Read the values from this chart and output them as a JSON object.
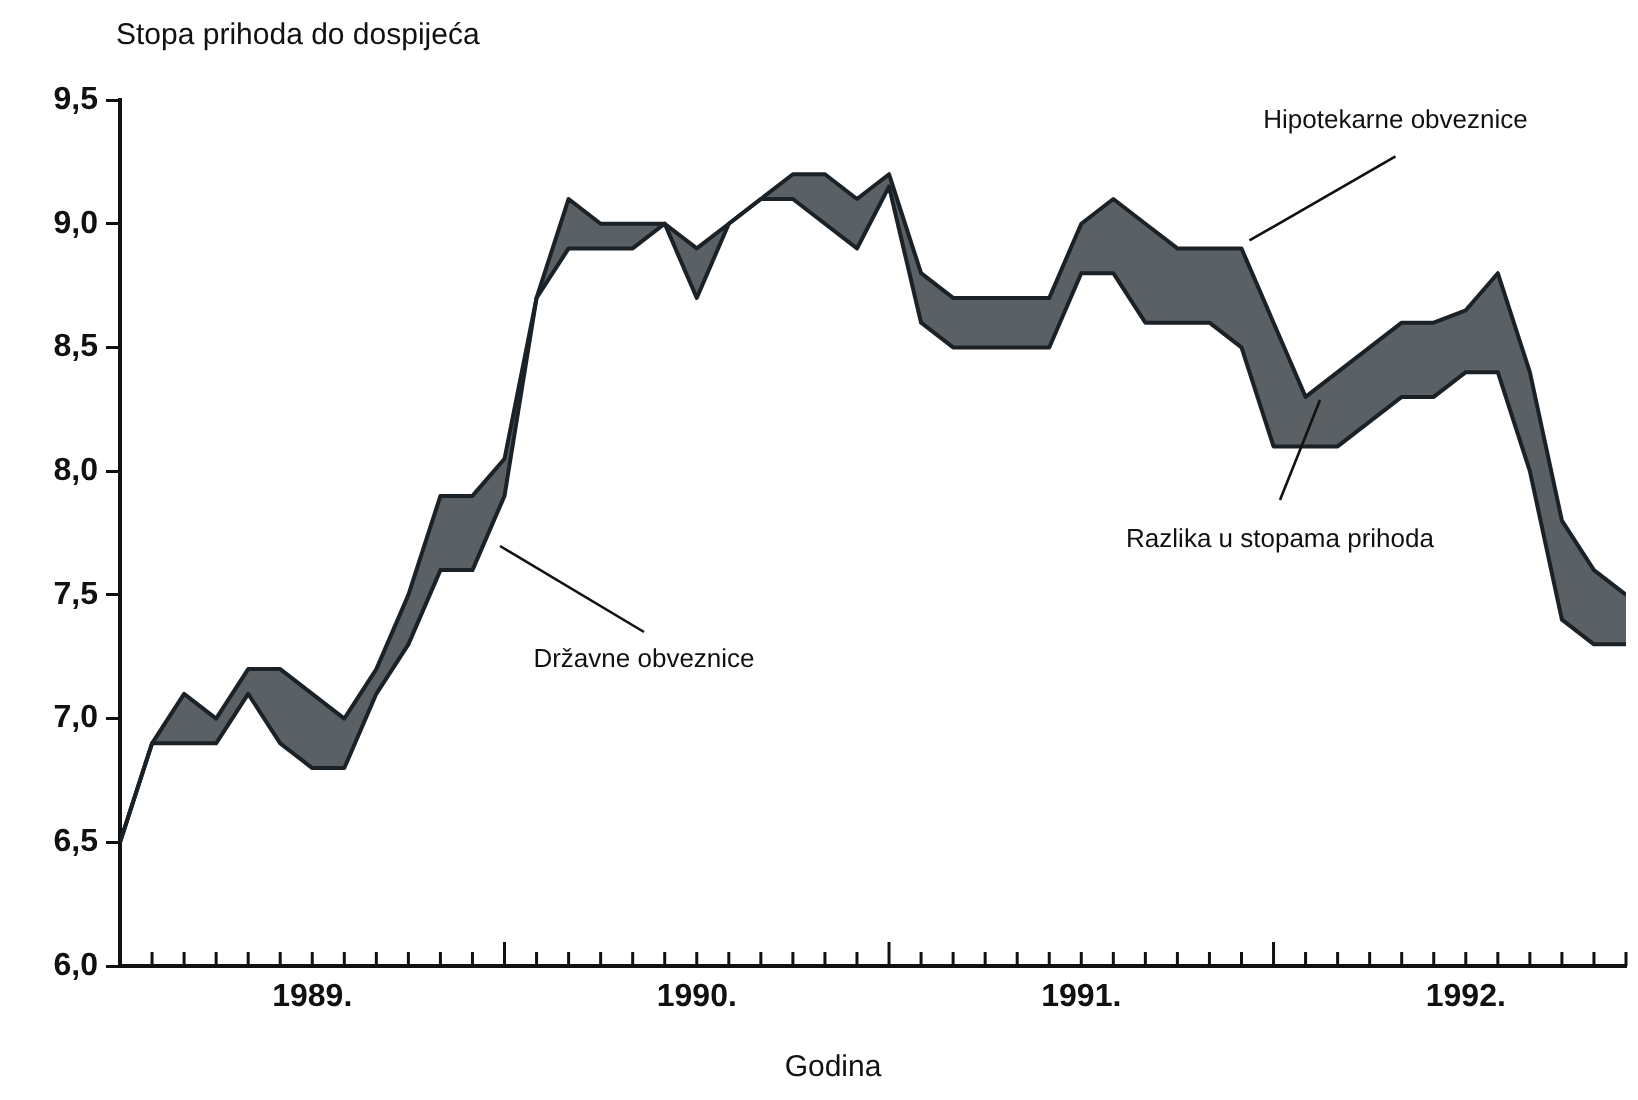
{
  "chart_data": {
    "type": "line",
    "xlabel": "Godina",
    "ylabel": "Stopa prihoda do dospijeća",
    "x": [
      "1989-01",
      "1989-02",
      "1989-03",
      "1989-04",
      "1989-05",
      "1989-06",
      "1989-07",
      "1989-08",
      "1989-09",
      "1989-10",
      "1989-11",
      "1989-12",
      "1990-01",
      "1990-02",
      "1990-03",
      "1990-04",
      "1990-05",
      "1990-06",
      "1990-07",
      "1990-08",
      "1990-09",
      "1990-10",
      "1990-11",
      "1990-12",
      "1991-01",
      "1991-02",
      "1991-03",
      "1991-04",
      "1991-05",
      "1991-06",
      "1991-07",
      "1991-08",
      "1991-09",
      "1991-10",
      "1991-11",
      "1991-12",
      "1992-01",
      "1992-02",
      "1992-03",
      "1992-04",
      "1992-05",
      "1992-06",
      "1992-07",
      "1992-08",
      "1992-09",
      "1992-10",
      "1992-11",
      "1992-12"
    ],
    "series": [
      {
        "color": "#1a2228",
        "values": [
          6.5,
          6.9,
          7.1,
          7.0,
          7.2,
          7.2,
          7.1,
          7.0,
          7.2,
          7.5,
          7.9,
          7.9,
          8.05,
          8.7,
          9.1,
          9.0,
          9.0,
          9.0,
          8.9,
          9.0,
          9.1,
          9.2,
          9.2,
          9.1,
          9.2,
          8.8,
          8.7,
          8.7,
          8.7,
          8.7,
          9.0,
          9.1,
          9.0,
          8.9,
          8.9,
          8.9,
          8.6,
          8.3,
          8.4,
          8.5,
          8.6,
          8.6,
          8.65,
          8.8,
          8.4,
          7.8,
          7.6,
          7.5
        ],
        "upper": [
          6.5,
          6.9,
          7.1,
          7.0,
          7.2,
          7.2,
          7.1,
          7.0,
          7.2,
          7.5,
          7.9,
          7.9,
          8.05,
          8.7,
          9.1,
          9.0,
          9.0,
          9.0,
          8.9,
          9.0,
          9.1,
          9.2,
          9.2,
          9.1,
          9.2,
          8.8,
          8.7,
          8.7,
          8.7,
          8.7,
          9.0,
          9.1,
          9.0,
          8.9,
          8.9,
          8.9,
          8.6,
          8.3,
          8.4,
          8.5,
          8.6,
          8.6,
          8.65,
          8.8,
          8.4,
          7.8,
          7.6,
          7.5
        ],
        "lower": [
          6.5,
          6.9,
          6.9,
          6.9,
          7.1,
          6.9,
          6.8,
          6.8,
          7.1,
          7.3,
          7.6,
          7.6,
          7.9,
          8.7,
          8.9,
          8.9,
          8.9,
          9.0,
          8.7,
          9.0,
          9.1,
          9.1,
          9.0,
          8.9,
          9.15,
          8.6,
          8.5,
          8.5,
          8.5,
          8.5,
          8.8,
          8.8,
          8.6,
          8.6,
          8.6,
          8.5,
          8.1,
          8.1,
          8.1,
          8.2,
          8.3,
          8.3,
          8.4,
          8.4,
          8.0,
          7.4,
          7.3,
          7.3
        ]
      },
      {
        "color": "#1a2228",
        "values": [
          6.5,
          6.9,
          6.9,
          6.9,
          7.1,
          6.9,
          6.8,
          6.8,
          7.1,
          7.3,
          7.6,
          7.6,
          7.9,
          8.7,
          8.9,
          8.9,
          8.9,
          9.0,
          8.7,
          9.0,
          9.1,
          9.1,
          9.0,
          8.9,
          9.15,
          8.6,
          8.5,
          8.5,
          8.5,
          8.5,
          8.8,
          8.8,
          8.6,
          8.6,
          8.6,
          8.5,
          8.1,
          8.1,
          8.1,
          8.2,
          8.3,
          8.3,
          8.4,
          8.4,
          8.0,
          7.4,
          7.3,
          7.3
        ]
      }
    ],
    "xlim": [
      "1989-01",
      "1992-12"
    ],
    "xticks": [
      {
        "value": "1989-01",
        "label": null
      },
      {
        "value": "1989-02",
        "label": null
      },
      {
        "value": "1989-03",
        "label": null
      },
      {
        "value": "1989-04",
        "label": null
      },
      {
        "value": "1989-05",
        "label": null
      },
      {
        "value": "1989-06",
        "label": null
      },
      {
        "value": "1989-07",
        "label": "1989."
      },
      {
        "value": "1989-08",
        "label": null
      },
      {
        "value": "1989-09",
        "label": null
      },
      {
        "value": "1989-10",
        "label": null
      },
      {
        "value": "1989-11",
        "label": null
      },
      {
        "value": "1989-12",
        "label": null
      },
      {
        "value": "1990-01",
        "label": null
      },
      {
        "value": "1990-02",
        "label": null
      },
      {
        "value": "1990-03",
        "label": null
      },
      {
        "value": "1990-04",
        "label": null
      },
      {
        "value": "1990-05",
        "label": null
      },
      {
        "value": "1990-06",
        "label": null
      },
      {
        "value": "1990-07",
        "label": "1990."
      },
      {
        "value": "1990-08",
        "label": null
      },
      {
        "value": "1990-09",
        "label": null
      },
      {
        "value": "1990-10",
        "label": null
      },
      {
        "value": "1990-11",
        "label": null
      },
      {
        "value": "1990-12",
        "label": null
      },
      {
        "value": "1991-01",
        "label": null
      },
      {
        "value": "1991-02",
        "label": null
      },
      {
        "value": "1991-03",
        "label": null
      },
      {
        "value": "1991-04",
        "label": null
      },
      {
        "value": "1991-05",
        "label": null
      },
      {
        "value": "1991-06",
        "label": null
      },
      {
        "value": "1991-07",
        "label": "1991."
      },
      {
        "value": "1991-08",
        "label": null
      },
      {
        "value": "1991-09",
        "label": null
      },
      {
        "value": "1991-10",
        "label": null
      },
      {
        "value": "1991-11",
        "label": null
      },
      {
        "value": "1991-12",
        "label": null
      },
      {
        "value": "1992-01",
        "label": null
      },
      {
        "value": "1992-02",
        "label": null
      },
      {
        "value": "1992-03",
        "label": null
      },
      {
        "value": "1992-04",
        "label": null
      },
      {
        "value": "1992-05",
        "label": null
      },
      {
        "value": "1992-06",
        "label": null
      },
      {
        "value": "1992-07",
        "label": "1992."
      },
      {
        "value": "1992-08",
        "label": null
      },
      {
        "value": "1992-09",
        "label": null
      },
      {
        "value": "1992-10",
        "label": null
      },
      {
        "value": "1992-11",
        "label": null
      },
      {
        "value": "1992-12",
        "label": null
      }
    ],
    "ylim": [
      6.0,
      9.5
    ],
    "yticks": [
      {
        "value": 6.0,
        "label": "6,0"
      },
      {
        "value": 6.5,
        "label": "6,5"
      },
      {
        "value": 7.0,
        "label": "7,0"
      },
      {
        "value": 7.5,
        "label": "7,5"
      },
      {
        "value": 8.0,
        "label": "8,0"
      },
      {
        "value": 8.5,
        "label": "8,5"
      },
      {
        "value": 9.0,
        "label": "9,0"
      },
      {
        "value": 9.5,
        "label": "9,5"
      }
    ],
    "grid": false,
    "legend": false,
    "marker": "none",
    "line_style": "solid",
    "annotations": [
      {
        "text": "Hipotekarne obveznice",
        "x": "1991-12",
        "y": 8.9
      },
      "Državne obveznice",
      "Razlika u stopama prihoda"
    ]
  }
}
